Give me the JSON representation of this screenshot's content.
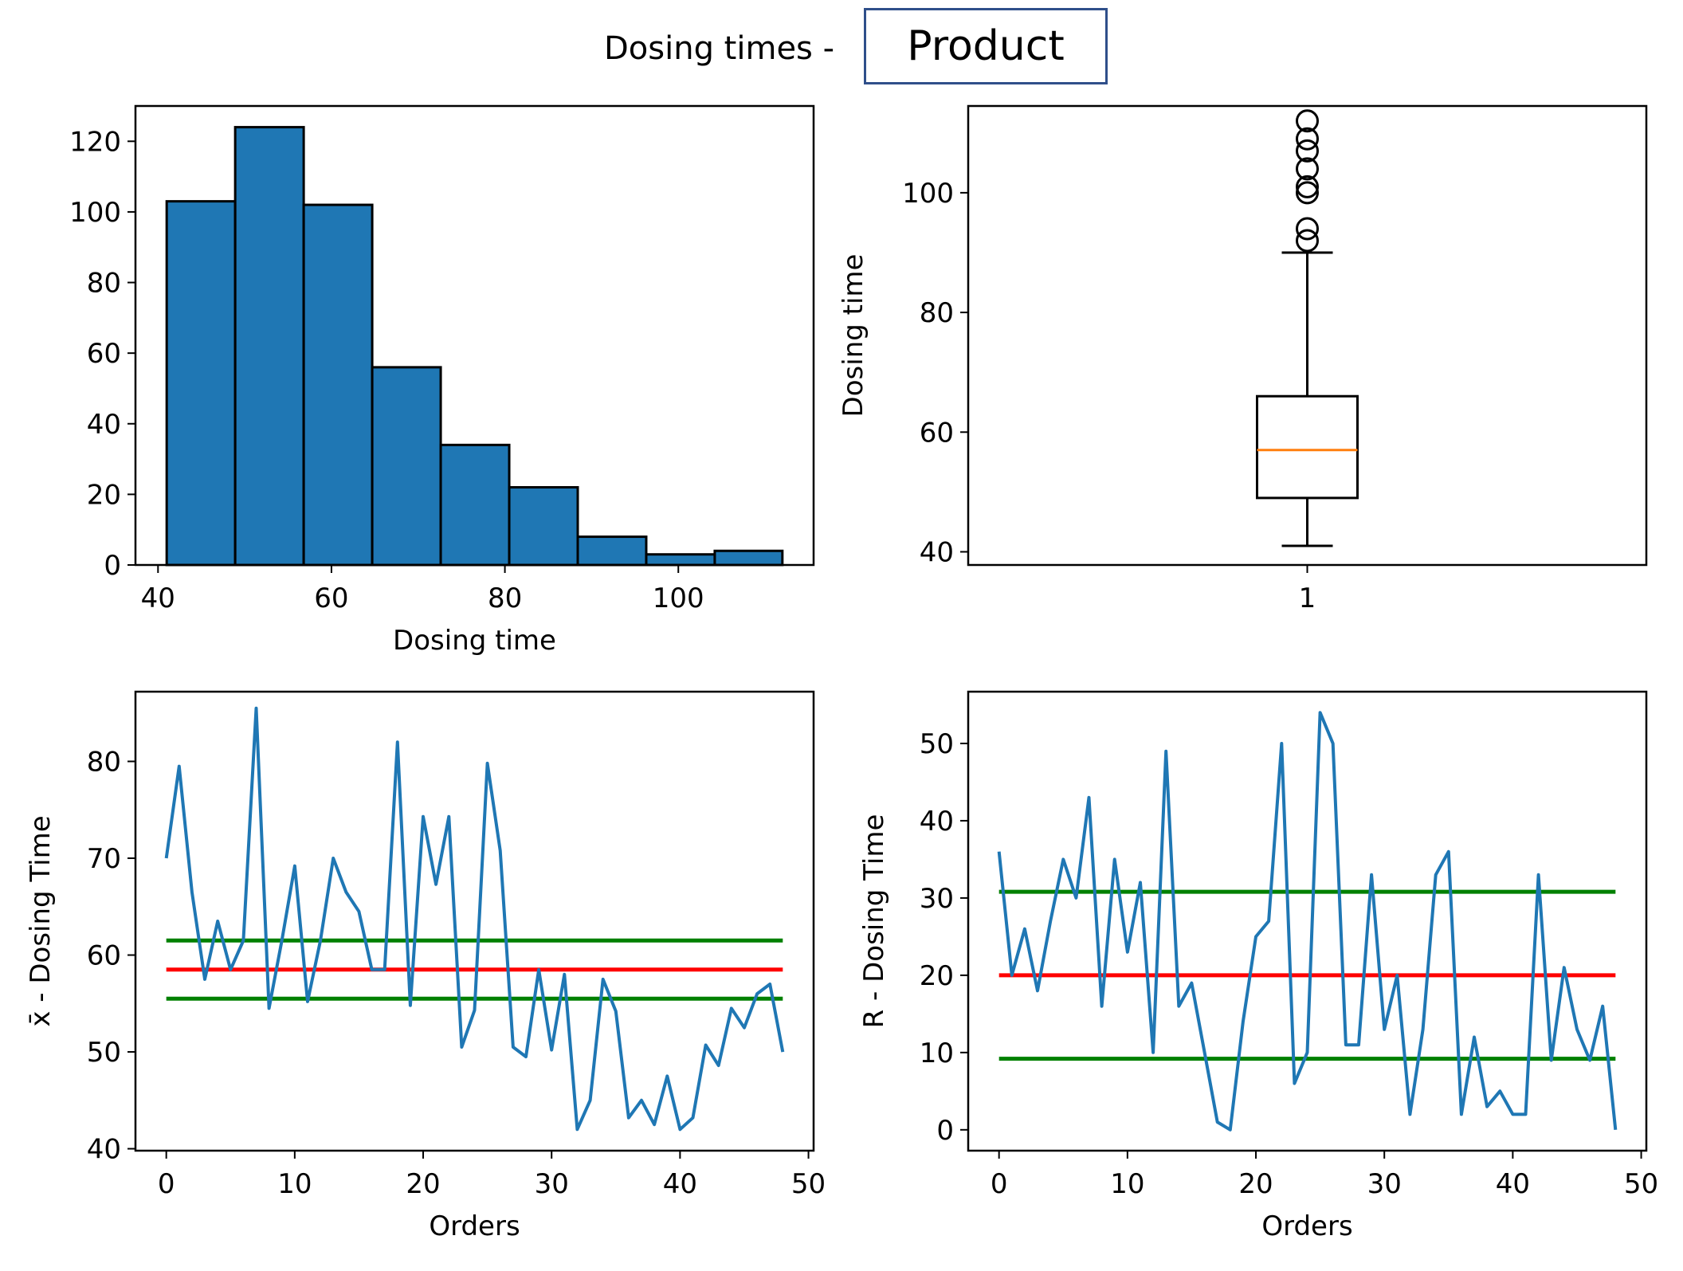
{
  "header": {
    "title_prefix": "Dosing times -",
    "product_value": "Product"
  },
  "colors": {
    "bar": "#1f77b4",
    "line": "#1f77b4",
    "median": "#ff7f0e",
    "center_line": "#ff0000",
    "control_limit": "#008000"
  },
  "chart_data": [
    {
      "type": "bar",
      "subtype": "histogram",
      "title": "",
      "xlabel": "Dosing time",
      "ylabel": "",
      "bin_edges": [
        41,
        48.9,
        56.8,
        64.7,
        72.6,
        80.5,
        88.4,
        96.3,
        104.2,
        112
      ],
      "values": [
        103,
        124,
        102,
        56,
        34,
        22,
        8,
        3,
        4
      ],
      "xlim": [
        37.4,
        115.6
      ],
      "ylim": [
        0,
        130
      ],
      "xticks": [
        40,
        60,
        80,
        100
      ],
      "yticks": [
        0,
        20,
        40,
        60,
        80,
        100,
        120
      ]
    },
    {
      "type": "boxplot",
      "title": "",
      "xlabel": "",
      "ylabel": "Dosing time",
      "category": "1",
      "stats": {
        "whisker_low": 41,
        "q1": 49,
        "median": 57,
        "q3": 66,
        "whisker_high": 90
      },
      "outliers": [
        92,
        94,
        100,
        101,
        104,
        107,
        109,
        112
      ],
      "ylim": [
        37.8,
        114.5
      ],
      "yticks": [
        40,
        60,
        80,
        100
      ]
    },
    {
      "type": "line",
      "title": "",
      "xlabel": "Orders",
      "ylabel": "x̄ - Dosing Time",
      "x_start": 0,
      "values": [
        70,
        79.5,
        66.5,
        57.5,
        63.5,
        58.5,
        61.5,
        85.5,
        54.5,
        61.5,
        69.2,
        55.2,
        61.5,
        70,
        66.5,
        64.5,
        58.5,
        58.5,
        82,
        54.8,
        74.3,
        67.3,
        74.3,
        50.5,
        54.3,
        79.8,
        70.8,
        50.5,
        49.5,
        58.5,
        50.2,
        58,
        42,
        45,
        57.5,
        54.2,
        43.2,
        45,
        42.5,
        47.5,
        42,
        43.2,
        50.7,
        48.6,
        54.5,
        52.5,
        56,
        57,
        50
      ],
      "center_line": 58.5,
      "upper_limit": 61.5,
      "lower_limit": 55.5,
      "xlim": [
        -2.4,
        50.4
      ],
      "ylim": [
        39.8,
        87.2
      ],
      "xticks": [
        0,
        10,
        20,
        30,
        40,
        50
      ],
      "yticks": [
        40,
        50,
        60,
        70,
        80
      ]
    },
    {
      "type": "line",
      "title": "",
      "xlabel": "Orders",
      "ylabel": "R - Dosing Time",
      "x_start": 0,
      "values": [
        36,
        20,
        26,
        18,
        27,
        35,
        30,
        43,
        16,
        35,
        23,
        32,
        10,
        49,
        16,
        19,
        10,
        1,
        0,
        14,
        25,
        27,
        50,
        6,
        10,
        54,
        50,
        11,
        11,
        33,
        13,
        20,
        2,
        13,
        33,
        36,
        2,
        12,
        3,
        5,
        2,
        2,
        33,
        9,
        21,
        13,
        9,
        16,
        0
      ],
      "center_line": 20,
      "upper_limit": 30.8,
      "lower_limit": 9.2,
      "xlim": [
        -2.4,
        50.4
      ],
      "ylim": [
        -2.7,
        56.7
      ],
      "xticks": [
        0,
        10,
        20,
        30,
        40,
        50
      ],
      "yticks": [
        0,
        10,
        20,
        30,
        40,
        50
      ]
    }
  ]
}
